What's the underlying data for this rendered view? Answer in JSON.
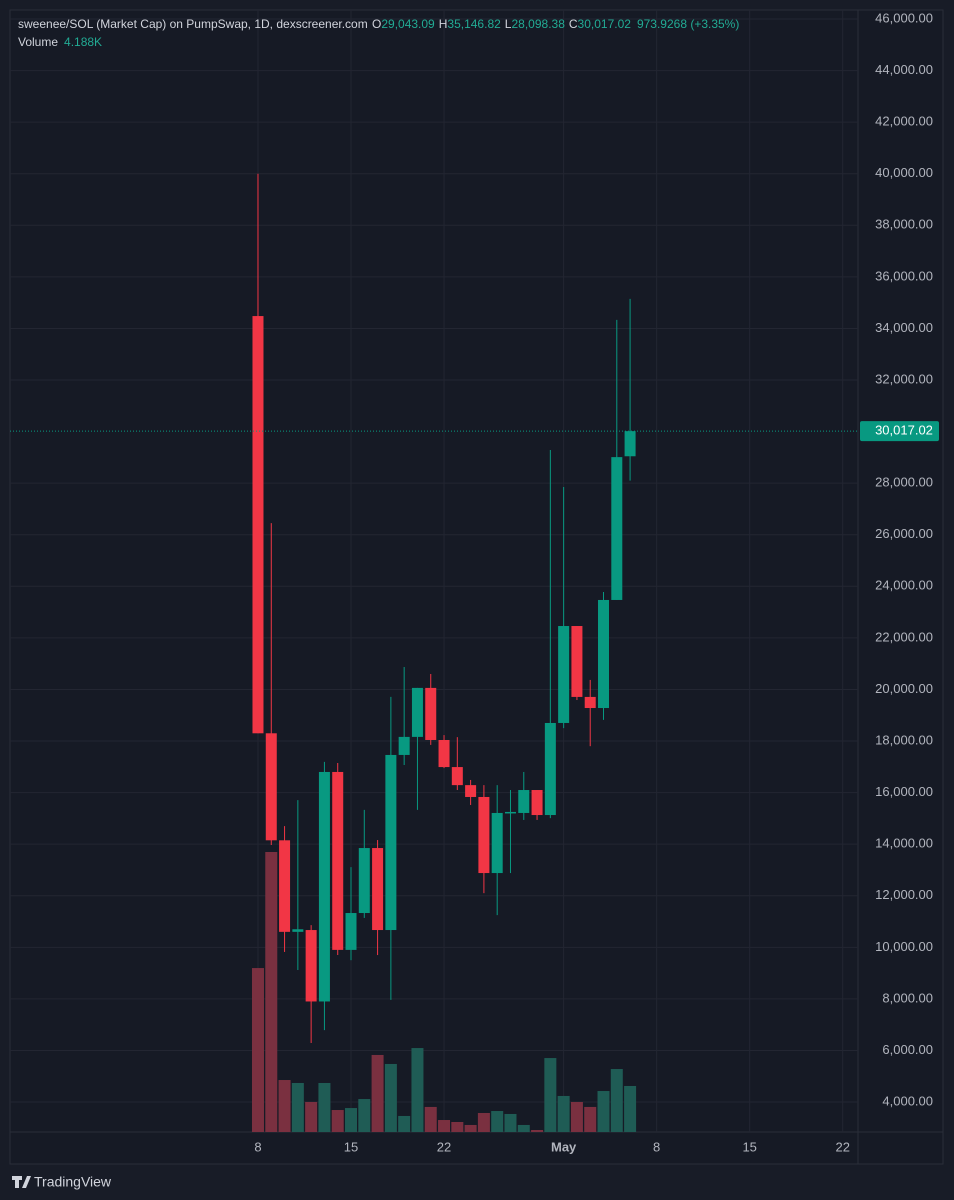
{
  "header": {
    "title": "sweenee/SOL (Market Cap) on PumpSwap, 1D, dexscreener.com",
    "ohlc": [
      {
        "key": "O",
        "value": "29,043.09"
      },
      {
        "key": "H",
        "value": "35,146.82"
      },
      {
        "key": "L",
        "value": "28,098.38"
      },
      {
        "key": "C",
        "value": "30,017.02"
      }
    ],
    "change": "973.9268 (+3.35%)",
    "volume_label": "Volume",
    "volume_value": "4.188K"
  },
  "footer": {
    "brand": "TradingView"
  },
  "chart_data": {
    "type": "candlestick",
    "x": [
      0,
      1,
      2,
      3,
      4,
      5,
      6,
      7,
      8,
      9,
      10,
      11,
      12,
      13,
      14,
      15,
      16,
      17,
      18,
      19,
      20,
      21,
      22,
      23,
      24,
      25,
      26,
      27,
      28
    ],
    "xlim": [
      -18.66,
      45.15
    ],
    "xticks": [
      {
        "value": 0,
        "label": "8"
      },
      {
        "value": 7,
        "label": "15"
      },
      {
        "value": 14,
        "label": "22"
      },
      {
        "value": 23,
        "label": "May"
      },
      {
        "value": 30,
        "label": "8"
      },
      {
        "value": 37,
        "label": "15"
      },
      {
        "value": 44,
        "label": "22"
      }
    ],
    "open": [
      34480,
      18300,
      14150,
      10600,
      10670,
      7900,
      16800,
      9900,
      11330,
      13850,
      10670,
      17460,
      18160,
      20060,
      18040,
      16990,
      16290,
      15830,
      12880,
      15210,
      15210,
      16100,
      15130,
      18700,
      22460,
      19710,
      19280,
      23470,
      29043.09
    ],
    "high": [
      40000,
      26450,
      14700,
      15710,
      10860,
      17190,
      17150,
      13110,
      15330,
      14160,
      19710,
      20870,
      20060,
      20600,
      18230,
      18150,
      16490,
      16290,
      16290,
      16100,
      16800,
      16100,
      29285,
      27850,
      22460,
      20370,
      23780,
      34330,
      35146.82
    ],
    "low": [
      18300,
      13970,
      9820,
      9120,
      6290,
      6790,
      9700,
      9500,
      11140,
      9700,
      7960,
      17070,
      15330,
      17850,
      16950,
      16100,
      15520,
      12100,
      11250,
      12880,
      14940,
      14940,
      15010,
      18500,
      19590,
      17800,
      18820,
      23470,
      28098.38
    ],
    "close": [
      18300,
      14150,
      10600,
      10700,
      7900,
      16800,
      9900,
      11330,
      13850,
      10670,
      17460,
      18160,
      20060,
      18040,
      16990,
      16290,
      15830,
      12880,
      15210,
      15250,
      16100,
      15130,
      18700,
      22460,
      19710,
      19280,
      23470,
      29010,
      30017.02
    ],
    "volume": [
      14920,
      25480,
      4730,
      4460,
      2730,
      4460,
      2000,
      2180,
      3000,
      7010,
      6190,
      1460,
      7640,
      2280,
      1090,
      910,
      640,
      1730,
      1910,
      1640,
      640,
      180,
      6730,
      3280,
      2730,
      2280,
      3730,
      5730,
      4188
    ],
    "volume_ylim": [
      0,
      27300
    ],
    "ylim": [
      2838,
      46349
    ],
    "yticks": [
      {
        "value": 46000,
        "label": "46,000.00"
      },
      {
        "value": 44000,
        "label": "44,000.00"
      },
      {
        "value": 42000,
        "label": "42,000.00"
      },
      {
        "value": 40000,
        "label": "40,000.00"
      },
      {
        "value": 38000,
        "label": "38,000.00"
      },
      {
        "value": 36000,
        "label": "36,000.00"
      },
      {
        "value": 34000,
        "label": "34,000.00"
      },
      {
        "value": 32000,
        "label": "32,000.00"
      },
      {
        "value": 28000,
        "label": "28,000.00"
      },
      {
        "value": 26000,
        "label": "26,000.00"
      },
      {
        "value": 24000,
        "label": "24,000.00"
      },
      {
        "value": 22000,
        "label": "22,000.00"
      },
      {
        "value": 20000,
        "label": "20,000.00"
      },
      {
        "value": 18000,
        "label": "18,000.00"
      },
      {
        "value": 16000,
        "label": "16,000.00"
      },
      {
        "value": 14000,
        "label": "14,000.00"
      },
      {
        "value": 12000,
        "label": "12,000.00"
      },
      {
        "value": 10000,
        "label": "10,000.00"
      },
      {
        "value": 8000,
        "label": "8,000.00"
      },
      {
        "value": 6000,
        "label": "6,000.00"
      },
      {
        "value": 4000,
        "label": "4,000.00"
      }
    ],
    "last_price": {
      "value": 30017.02,
      "label": "30,017.02"
    },
    "up_color": "#089981",
    "down_color": "#f23645",
    "up_volume_color": "#1f5c55",
    "down_volume_color": "#7a3040",
    "grid": true
  }
}
